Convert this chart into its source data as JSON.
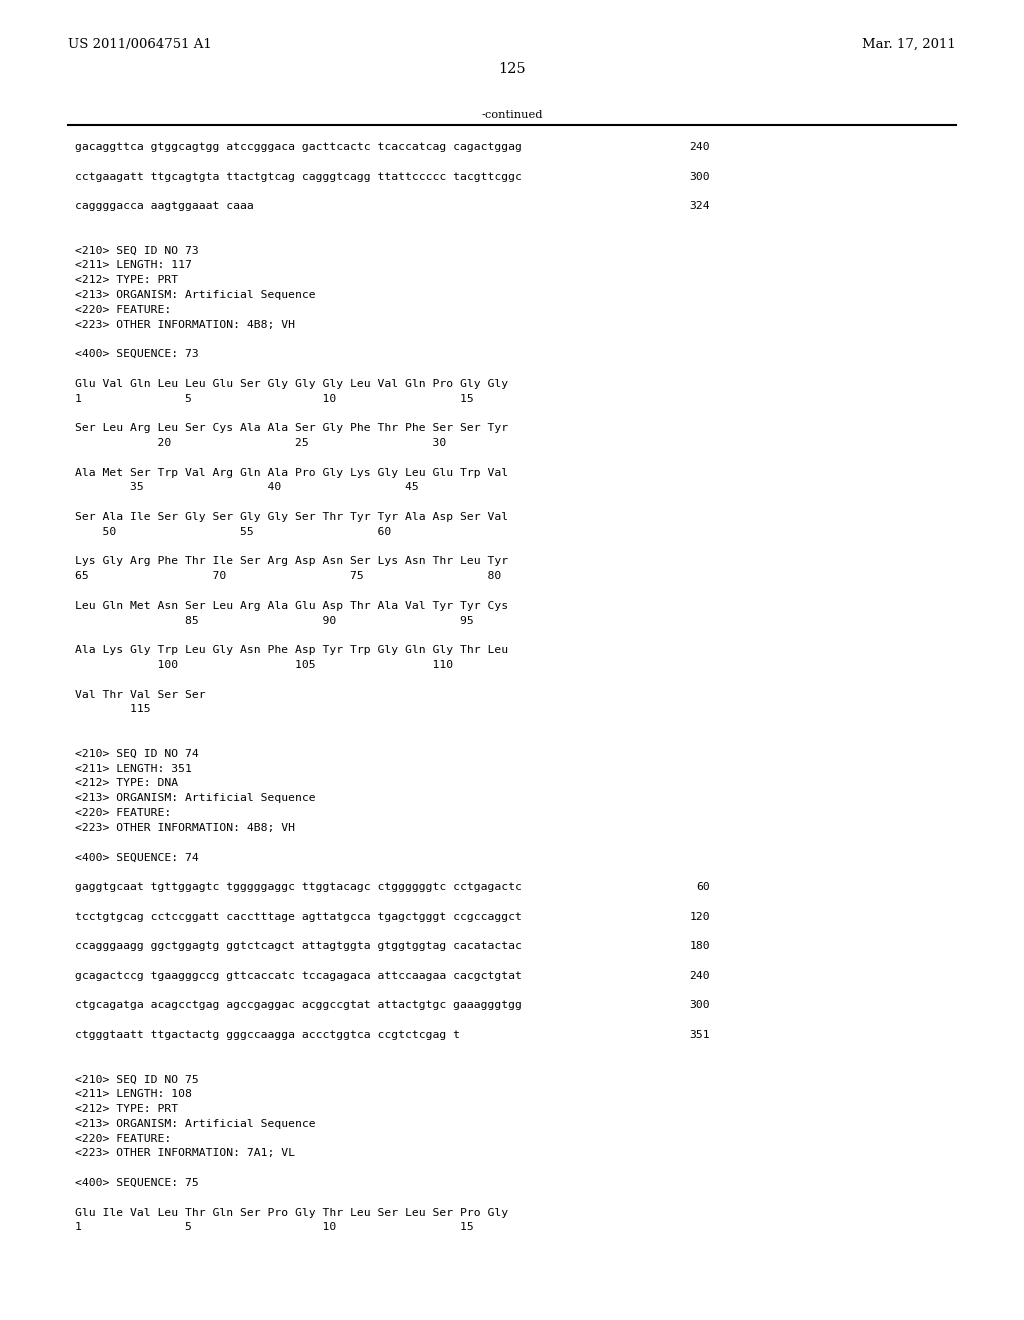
{
  "header_left": "US 2011/0064751 A1",
  "header_right": "Mar. 17, 2011",
  "page_number": "125",
  "continued_label": "-continued",
  "background_color": "#ffffff",
  "text_color": "#000000",
  "font_size_header": 9.5,
  "font_size_page": 10.5,
  "font_size_body": 8.2,
  "lines": [
    {
      "text": "gacaggttca gtggcagtgg atccgggaca gacttcactc tcaccatcag cagactggag",
      "right_num": "240"
    },
    {
      "text": "",
      "right_num": ""
    },
    {
      "text": "cctgaagatt ttgcagtgta ttactgtcag cagggtcagg ttattccccc tacgttcggc",
      "right_num": "300"
    },
    {
      "text": "",
      "right_num": ""
    },
    {
      "text": "caggggacca aagtggaaat caaa",
      "right_num": "324"
    },
    {
      "text": "",
      "right_num": ""
    },
    {
      "text": "",
      "right_num": ""
    },
    {
      "text": "<210> SEQ ID NO 73",
      "right_num": ""
    },
    {
      "text": "<211> LENGTH: 117",
      "right_num": ""
    },
    {
      "text": "<212> TYPE: PRT",
      "right_num": ""
    },
    {
      "text": "<213> ORGANISM: Artificial Sequence",
      "right_num": ""
    },
    {
      "text": "<220> FEATURE:",
      "right_num": ""
    },
    {
      "text": "<223> OTHER INFORMATION: 4B8; VH",
      "right_num": ""
    },
    {
      "text": "",
      "right_num": ""
    },
    {
      "text": "<400> SEQUENCE: 73",
      "right_num": ""
    },
    {
      "text": "",
      "right_num": ""
    },
    {
      "text": "Glu Val Gln Leu Leu Glu Ser Gly Gly Gly Leu Val Gln Pro Gly Gly",
      "right_num": ""
    },
    {
      "text": "1               5                   10                  15",
      "right_num": ""
    },
    {
      "text": "",
      "right_num": ""
    },
    {
      "text": "Ser Leu Arg Leu Ser Cys Ala Ala Ser Gly Phe Thr Phe Ser Ser Tyr",
      "right_num": ""
    },
    {
      "text": "            20                  25                  30",
      "right_num": ""
    },
    {
      "text": "",
      "right_num": ""
    },
    {
      "text": "Ala Met Ser Trp Val Arg Gln Ala Pro Gly Lys Gly Leu Glu Trp Val",
      "right_num": ""
    },
    {
      "text": "        35                  40                  45",
      "right_num": ""
    },
    {
      "text": "",
      "right_num": ""
    },
    {
      "text": "Ser Ala Ile Ser Gly Ser Gly Gly Ser Thr Tyr Tyr Ala Asp Ser Val",
      "right_num": ""
    },
    {
      "text": "    50                  55                  60",
      "right_num": ""
    },
    {
      "text": "",
      "right_num": ""
    },
    {
      "text": "Lys Gly Arg Phe Thr Ile Ser Arg Asp Asn Ser Lys Asn Thr Leu Tyr",
      "right_num": ""
    },
    {
      "text": "65                  70                  75                  80",
      "right_num": ""
    },
    {
      "text": "",
      "right_num": ""
    },
    {
      "text": "Leu Gln Met Asn Ser Leu Arg Ala Glu Asp Thr Ala Val Tyr Tyr Cys",
      "right_num": ""
    },
    {
      "text": "                85                  90                  95",
      "right_num": ""
    },
    {
      "text": "",
      "right_num": ""
    },
    {
      "text": "Ala Lys Gly Trp Leu Gly Asn Phe Asp Tyr Trp Gly Gln Gly Thr Leu",
      "right_num": ""
    },
    {
      "text": "            100                 105                 110",
      "right_num": ""
    },
    {
      "text": "",
      "right_num": ""
    },
    {
      "text": "Val Thr Val Ser Ser",
      "right_num": ""
    },
    {
      "text": "        115",
      "right_num": ""
    },
    {
      "text": "",
      "right_num": ""
    },
    {
      "text": "",
      "right_num": ""
    },
    {
      "text": "<210> SEQ ID NO 74",
      "right_num": ""
    },
    {
      "text": "<211> LENGTH: 351",
      "right_num": ""
    },
    {
      "text": "<212> TYPE: DNA",
      "right_num": ""
    },
    {
      "text": "<213> ORGANISM: Artificial Sequence",
      "right_num": ""
    },
    {
      "text": "<220> FEATURE:",
      "right_num": ""
    },
    {
      "text": "<223> OTHER INFORMATION: 4B8; VH",
      "right_num": ""
    },
    {
      "text": "",
      "right_num": ""
    },
    {
      "text": "<400> SEQUENCE: 74",
      "right_num": ""
    },
    {
      "text": "",
      "right_num": ""
    },
    {
      "text": "gaggtgcaat tgttggagtc tgggggaggc ttggtacagc ctggggggtc cctgagactc",
      "right_num": "60"
    },
    {
      "text": "",
      "right_num": ""
    },
    {
      "text": "tcctgtgcag cctccggatt cacctttage agttatgcca tgagctgggt ccgccaggct",
      "right_num": "120"
    },
    {
      "text": "",
      "right_num": ""
    },
    {
      "text": "ccagggaagg ggctggagtg ggtctcagct attagtggta gtggtggtag cacatactac",
      "right_num": "180"
    },
    {
      "text": "",
      "right_num": ""
    },
    {
      "text": "gcagactccg tgaagggccg gttcaccatc tccagagaca attccaagaa cacgctgtat",
      "right_num": "240"
    },
    {
      "text": "",
      "right_num": ""
    },
    {
      "text": "ctgcagatga acagcctgag agccgaggac acggccgtat attactgtgc gaaagggtgg",
      "right_num": "300"
    },
    {
      "text": "",
      "right_num": ""
    },
    {
      "text": "ctgggtaatt ttgactactg gggccaagga accctggtca ccgtctcgag t",
      "right_num": "351"
    },
    {
      "text": "",
      "right_num": ""
    },
    {
      "text": "",
      "right_num": ""
    },
    {
      "text": "<210> SEQ ID NO 75",
      "right_num": ""
    },
    {
      "text": "<211> LENGTH: 108",
      "right_num": ""
    },
    {
      "text": "<212> TYPE: PRT",
      "right_num": ""
    },
    {
      "text": "<213> ORGANISM: Artificial Sequence",
      "right_num": ""
    },
    {
      "text": "<220> FEATURE:",
      "right_num": ""
    },
    {
      "text": "<223> OTHER INFORMATION: 7A1; VL",
      "right_num": ""
    },
    {
      "text": "",
      "right_num": ""
    },
    {
      "text": "<400> SEQUENCE: 75",
      "right_num": ""
    },
    {
      "text": "",
      "right_num": ""
    },
    {
      "text": "Glu Ile Val Leu Thr Gln Ser Pro Gly Thr Leu Ser Leu Ser Pro Gly",
      "right_num": ""
    },
    {
      "text": "1               5                   10                  15",
      "right_num": ""
    }
  ]
}
